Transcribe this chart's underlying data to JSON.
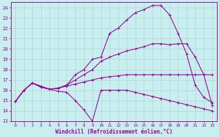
{
  "xlabel": "Windchill (Refroidissement éolien,°C)",
  "xlim": [
    -0.5,
    23.5
  ],
  "ylim": [
    13,
    24.5
  ],
  "yticks": [
    13,
    14,
    15,
    16,
    17,
    18,
    19,
    20,
    21,
    22,
    23,
    24
  ],
  "xticks": [
    0,
    1,
    2,
    3,
    4,
    5,
    6,
    7,
    8,
    9,
    10,
    11,
    12,
    13,
    14,
    15,
    16,
    17,
    18,
    19,
    20,
    21,
    22,
    23
  ],
  "bg_color": "#c8eef0",
  "grid_color": "#a8d8cc",
  "line_color": "#990099",
  "curves": [
    {
      "x": [
        0,
        1,
        2,
        3,
        4,
        5,
        6,
        7,
        8,
        9,
        10,
        11,
        12,
        13,
        14,
        15,
        16,
        17,
        18,
        19,
        20,
        21,
        22,
        23
      ],
      "y": [
        14.9,
        16.0,
        16.7,
        16.4,
        16.1,
        15.9,
        15.8,
        15.0,
        14.1,
        13.0,
        16.0,
        16.0,
        16.0,
        16.0,
        15.8,
        15.6,
        15.4,
        15.2,
        15.0,
        14.8,
        14.6,
        14.4,
        14.2,
        14.0
      ]
    },
    {
      "x": [
        0,
        1,
        2,
        3,
        4,
        5,
        6,
        7,
        8,
        9,
        10,
        11,
        12,
        13,
        14,
        15,
        16,
        17,
        18,
        19,
        20,
        21,
        22,
        23
      ],
      "y": [
        14.9,
        16.0,
        16.7,
        16.3,
        16.1,
        16.2,
        16.4,
        16.6,
        16.8,
        17.0,
        17.2,
        17.3,
        17.4,
        17.5,
        17.5,
        17.5,
        17.5,
        17.5,
        17.5,
        17.5,
        17.5,
        17.5,
        17.5,
        17.5
      ]
    },
    {
      "x": [
        0,
        1,
        2,
        3,
        4,
        5,
        6,
        7,
        8,
        9,
        10,
        11,
        12,
        13,
        14,
        15,
        16,
        17,
        18,
        19,
        20,
        21,
        22,
        23
      ],
      "y": [
        14.9,
        16.0,
        16.7,
        16.3,
        16.1,
        16.2,
        16.5,
        17.5,
        18.0,
        19.0,
        19.2,
        21.5,
        22.0,
        22.8,
        23.5,
        23.8,
        24.2,
        24.2,
        23.3,
        21.5,
        19.5,
        16.5,
        15.3,
        14.8
      ]
    },
    {
      "x": [
        0,
        1,
        2,
        3,
        4,
        5,
        6,
        7,
        8,
        9,
        10,
        11,
        12,
        13,
        14,
        15,
        16,
        17,
        18,
        19,
        20,
        21,
        22,
        23
      ],
      "y": [
        14.9,
        16.0,
        16.7,
        16.3,
        16.1,
        16.2,
        16.5,
        17.0,
        17.5,
        18.0,
        18.8,
        19.2,
        19.5,
        19.8,
        20.0,
        20.2,
        20.5,
        20.5,
        20.4,
        20.5,
        20.5,
        19.2,
        17.5,
        14.5
      ]
    }
  ]
}
